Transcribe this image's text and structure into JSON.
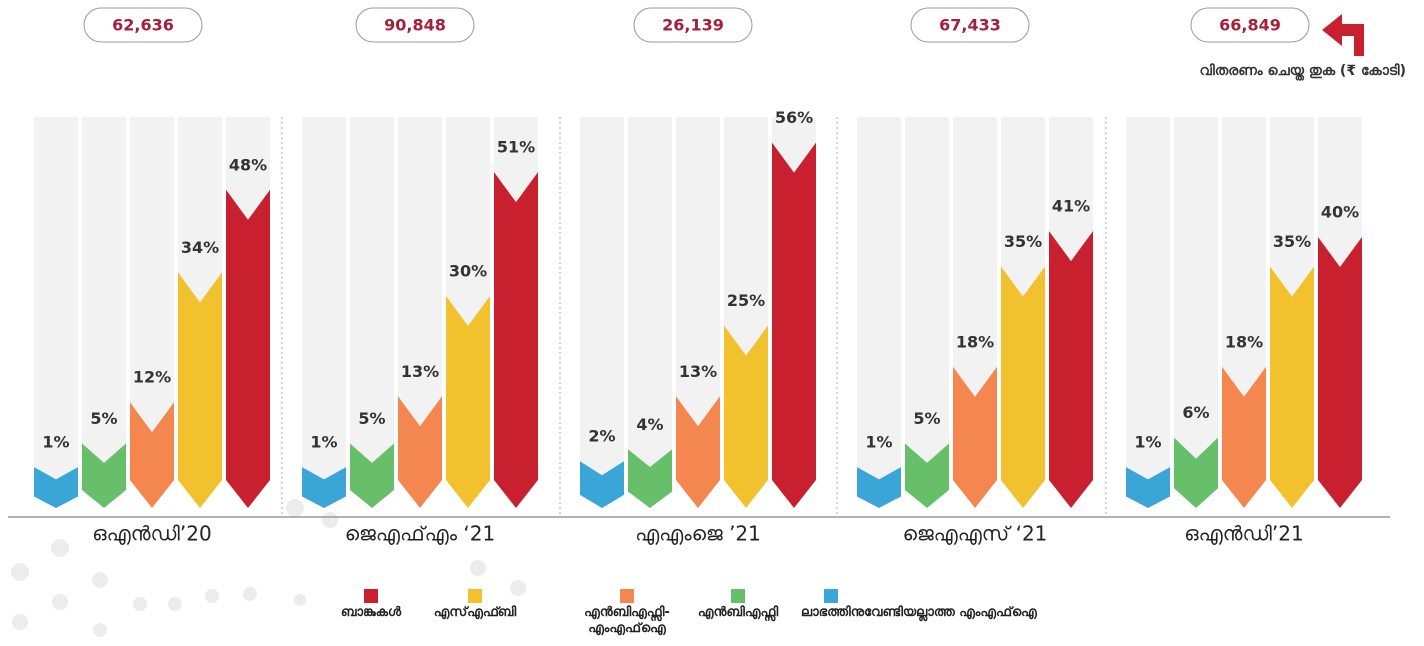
{
  "chart_data": {
    "type": "bar",
    "categories": [
      "ഒഎൻഡി’20",
      "ജെഎഫ്എം ‘21",
      "എഎംജെ ’21",
      "ജെഎഎസ് ‘21",
      "ഒഎൻഡി’21"
    ],
    "totals": [
      62636,
      90848,
      26139,
      67433,
      66849
    ],
    "total_labels": [
      "62,636",
      "90,848",
      "26,139",
      "67,433",
      "66,849"
    ],
    "totals_label": "വിതരണം ചെയ്ത തുക (₹ കോടി)",
    "series": [
      {
        "name": "ലാഭത്തിനുവേണ്ടിയല്ലാത്ത എംഎഫ്ഐ",
        "color": "#3aa6d8",
        "values": [
          1,
          1,
          2,
          1,
          1
        ],
        "value_labels": [
          "1%",
          "1%",
          "2%",
          "1%",
          "1%"
        ]
      },
      {
        "name": "എൻബിഎഫ്സി",
        "color": "#68bf6a",
        "values": [
          5,
          5,
          4,
          5,
          6
        ],
        "value_labels": [
          "5%",
          "5%",
          "4%",
          "5%",
          "6%"
        ]
      },
      {
        "name": "എൻബിഎഫ്സി- എംഎഫ്ഐ",
        "color": "#f4874f",
        "values": [
          12,
          13,
          13,
          18,
          18
        ],
        "value_labels": [
          "12%",
          "13%",
          "13%",
          "18%",
          "18%"
        ]
      },
      {
        "name": "എസ്എഫ്ബി",
        "color": "#f2c12e",
        "values": [
          34,
          30,
          25,
          35,
          35
        ],
        "value_labels": [
          "34%",
          "30%",
          "25%",
          "35%",
          "35%"
        ]
      },
      {
        "name": "ബാങ്കുകൾ",
        "color": "#c8202f",
        "values": [
          48,
          51,
          56,
          41,
          40
        ],
        "value_labels": [
          "48%",
          "51%",
          "56%",
          "41%",
          "40%"
        ]
      }
    ]
  }
}
